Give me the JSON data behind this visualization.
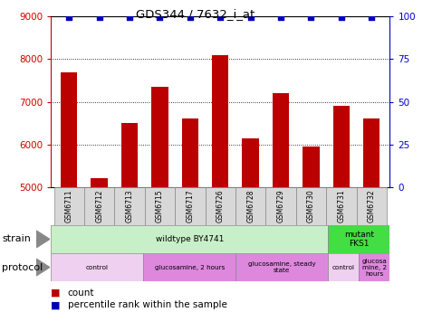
{
  "title": "GDS344 / 7632_i_at",
  "samples": [
    "GSM6711",
    "GSM6712",
    "GSM6713",
    "GSM6715",
    "GSM6717",
    "GSM6726",
    "GSM6728",
    "GSM6729",
    "GSM6730",
    "GSM6731",
    "GSM6732"
  ],
  "counts": [
    7700,
    5200,
    6500,
    7350,
    6600,
    8100,
    6150,
    7200,
    5950,
    6900,
    6600
  ],
  "percentiles": [
    100,
    100,
    100,
    100,
    100,
    100,
    100,
    100,
    100,
    100,
    100
  ],
  "ylim_left": [
    5000,
    9000
  ],
  "ylim_right": [
    0,
    100
  ],
  "yticks_left": [
    5000,
    6000,
    7000,
    8000,
    9000
  ],
  "yticks_right": [
    0,
    25,
    50,
    75,
    100
  ],
  "bar_color": "#bb0000",
  "dot_color": "#0000bb",
  "bar_bottom": 5000,
  "strain_groups": [
    {
      "label": "wildtype BY4741",
      "start": 0,
      "end": 9,
      "color": "#c8f0c8"
    },
    {
      "label": "mutant\nFKS1",
      "start": 9,
      "end": 11,
      "color": "#44dd44"
    }
  ],
  "protocol_groups": [
    {
      "label": "control",
      "start": 0,
      "end": 3,
      "color": "#f0d0f0"
    },
    {
      "label": "glucosamine, 2 hours",
      "start": 3,
      "end": 6,
      "color": "#dd88dd"
    },
    {
      "label": "glucosamine, steady\nstate",
      "start": 6,
      "end": 9,
      "color": "#dd88dd"
    },
    {
      "label": "control",
      "start": 9,
      "end": 10,
      "color": "#f0d0f0"
    },
    {
      "label": "glucosa\nmine, 2\nhours",
      "start": 10,
      "end": 11,
      "color": "#dd88dd"
    }
  ],
  "legend_count_color": "#bb0000",
  "legend_dot_color": "#0000bb",
  "axis_color_left": "#cc0000",
  "axis_color_right": "#0000cc"
}
